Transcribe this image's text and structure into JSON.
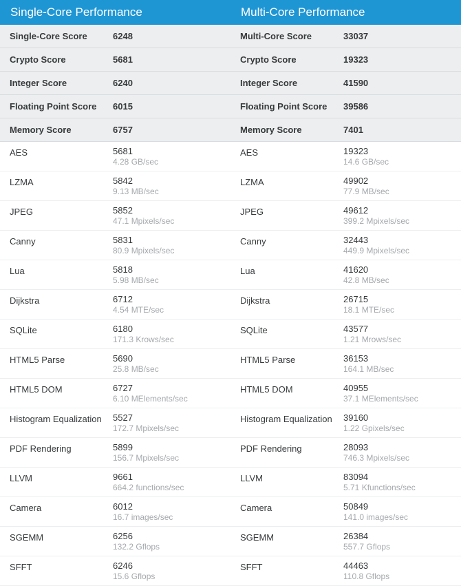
{
  "colors": {
    "header_bg": "#1f96d4",
    "header_text": "#ffffff",
    "summary_bg": "#eceeef",
    "summary_border": "#d9dcde",
    "bench_border": "#eceeef",
    "text": "#373a3c",
    "subtext": "#a5a9ad",
    "page_bg": "#ffffff"
  },
  "columns": [
    {
      "title": "Single-Core Performance",
      "summary": [
        {
          "label": "Single-Core Score",
          "value": "6248"
        },
        {
          "label": "Crypto Score",
          "value": "5681"
        },
        {
          "label": "Integer Score",
          "value": "6240"
        },
        {
          "label": "Floating Point Score",
          "value": "6015"
        },
        {
          "label": "Memory Score",
          "value": "6757"
        }
      ],
      "benchmarks": [
        {
          "label": "AES",
          "score": "5681",
          "sub": "4.28 GB/sec"
        },
        {
          "label": "LZMA",
          "score": "5842",
          "sub": "9.13 MB/sec"
        },
        {
          "label": "JPEG",
          "score": "5852",
          "sub": "47.1 Mpixels/sec"
        },
        {
          "label": "Canny",
          "score": "5831",
          "sub": "80.9 Mpixels/sec"
        },
        {
          "label": "Lua",
          "score": "5818",
          "sub": "5.98 MB/sec"
        },
        {
          "label": "Dijkstra",
          "score": "6712",
          "sub": "4.54 MTE/sec"
        },
        {
          "label": "SQLite",
          "score": "6180",
          "sub": "171.3 Krows/sec"
        },
        {
          "label": "HTML5 Parse",
          "score": "5690",
          "sub": "25.8 MB/sec"
        },
        {
          "label": "HTML5 DOM",
          "score": "6727",
          "sub": "6.10 MElements/sec"
        },
        {
          "label": "Histogram Equalization",
          "score": "5527",
          "sub": "172.7 Mpixels/sec"
        },
        {
          "label": "PDF Rendering",
          "score": "5899",
          "sub": "156.7 Mpixels/sec"
        },
        {
          "label": "LLVM",
          "score": "9661",
          "sub": "664.2 functions/sec"
        },
        {
          "label": "Camera",
          "score": "6012",
          "sub": "16.7 images/sec"
        },
        {
          "label": "SGEMM",
          "score": "6256",
          "sub": "132.2 Gflops"
        },
        {
          "label": "SFFT",
          "score": "6246",
          "sub": "15.6 Gflops"
        }
      ]
    },
    {
      "title": "Multi-Core Performance",
      "summary": [
        {
          "label": "Multi-Core Score",
          "value": "33037"
        },
        {
          "label": "Crypto Score",
          "value": "19323"
        },
        {
          "label": "Integer Score",
          "value": "41590"
        },
        {
          "label": "Floating Point Score",
          "value": "39586"
        },
        {
          "label": "Memory Score",
          "value": "7401"
        }
      ],
      "benchmarks": [
        {
          "label": "AES",
          "score": "19323",
          "sub": "14.6 GB/sec"
        },
        {
          "label": "LZMA",
          "score": "49902",
          "sub": "77.9 MB/sec"
        },
        {
          "label": "JPEG",
          "score": "49612",
          "sub": "399.2 Mpixels/sec"
        },
        {
          "label": "Canny",
          "score": "32443",
          "sub": "449.9 Mpixels/sec"
        },
        {
          "label": "Lua",
          "score": "41620",
          "sub": "42.8 MB/sec"
        },
        {
          "label": "Dijkstra",
          "score": "26715",
          "sub": "18.1 MTE/sec"
        },
        {
          "label": "SQLite",
          "score": "43577",
          "sub": "1.21 Mrows/sec"
        },
        {
          "label": "HTML5 Parse",
          "score": "36153",
          "sub": "164.1 MB/sec"
        },
        {
          "label": "HTML5 DOM",
          "score": "40955",
          "sub": "37.1 MElements/sec"
        },
        {
          "label": "Histogram Equalization",
          "score": "39160",
          "sub": "1.22 Gpixels/sec"
        },
        {
          "label": "PDF Rendering",
          "score": "28093",
          "sub": "746.3 Mpixels/sec"
        },
        {
          "label": "LLVM",
          "score": "83094",
          "sub": "5.71 Kfunctions/sec"
        },
        {
          "label": "Camera",
          "score": "50849",
          "sub": "141.0 images/sec"
        },
        {
          "label": "SGEMM",
          "score": "26384",
          "sub": "557.7 Gflops"
        },
        {
          "label": "SFFT",
          "score": "44463",
          "sub": "110.8 Gflops"
        }
      ]
    }
  ]
}
